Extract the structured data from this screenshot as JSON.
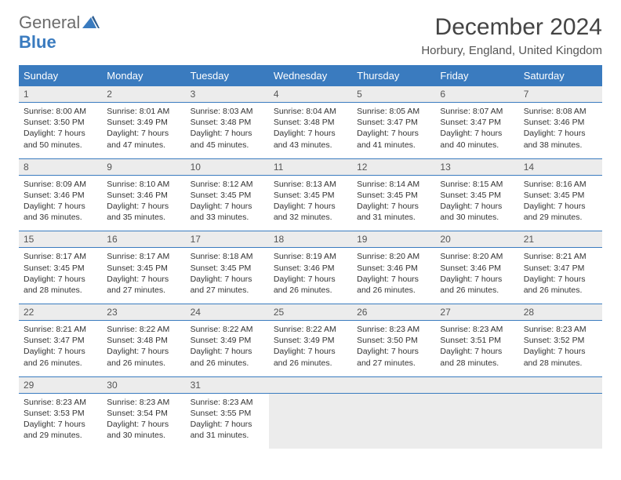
{
  "logo": {
    "word1": "General",
    "word2": "Blue"
  },
  "title": "December 2024",
  "location": "Horbury, England, United Kingdom",
  "colors": {
    "header_bg": "#3a7bbf",
    "header_text": "#ffffff",
    "daynum_bg": "#ececec",
    "border": "#3a7bbf",
    "page_bg": "#ffffff",
    "text": "#333333",
    "logo_gray": "#6c6c6c",
    "logo_blue": "#3a7bbf"
  },
  "weekdays": [
    "Sunday",
    "Monday",
    "Tuesday",
    "Wednesday",
    "Thursday",
    "Friday",
    "Saturday"
  ],
  "weeks": [
    [
      {
        "n": "1",
        "sr": "8:00 AM",
        "ss": "3:50 PM",
        "dl": "7 hours and 50 minutes."
      },
      {
        "n": "2",
        "sr": "8:01 AM",
        "ss": "3:49 PM",
        "dl": "7 hours and 47 minutes."
      },
      {
        "n": "3",
        "sr": "8:03 AM",
        "ss": "3:48 PM",
        "dl": "7 hours and 45 minutes."
      },
      {
        "n": "4",
        "sr": "8:04 AM",
        "ss": "3:48 PM",
        "dl": "7 hours and 43 minutes."
      },
      {
        "n": "5",
        "sr": "8:05 AM",
        "ss": "3:47 PM",
        "dl": "7 hours and 41 minutes."
      },
      {
        "n": "6",
        "sr": "8:07 AM",
        "ss": "3:47 PM",
        "dl": "7 hours and 40 minutes."
      },
      {
        "n": "7",
        "sr": "8:08 AM",
        "ss": "3:46 PM",
        "dl": "7 hours and 38 minutes."
      }
    ],
    [
      {
        "n": "8",
        "sr": "8:09 AM",
        "ss": "3:46 PM",
        "dl": "7 hours and 36 minutes."
      },
      {
        "n": "9",
        "sr": "8:10 AM",
        "ss": "3:46 PM",
        "dl": "7 hours and 35 minutes."
      },
      {
        "n": "10",
        "sr": "8:12 AM",
        "ss": "3:45 PM",
        "dl": "7 hours and 33 minutes."
      },
      {
        "n": "11",
        "sr": "8:13 AM",
        "ss": "3:45 PM",
        "dl": "7 hours and 32 minutes."
      },
      {
        "n": "12",
        "sr": "8:14 AM",
        "ss": "3:45 PM",
        "dl": "7 hours and 31 minutes."
      },
      {
        "n": "13",
        "sr": "8:15 AM",
        "ss": "3:45 PM",
        "dl": "7 hours and 30 minutes."
      },
      {
        "n": "14",
        "sr": "8:16 AM",
        "ss": "3:45 PM",
        "dl": "7 hours and 29 minutes."
      }
    ],
    [
      {
        "n": "15",
        "sr": "8:17 AM",
        "ss": "3:45 PM",
        "dl": "7 hours and 28 minutes."
      },
      {
        "n": "16",
        "sr": "8:17 AM",
        "ss": "3:45 PM",
        "dl": "7 hours and 27 minutes."
      },
      {
        "n": "17",
        "sr": "8:18 AM",
        "ss": "3:45 PM",
        "dl": "7 hours and 27 minutes."
      },
      {
        "n": "18",
        "sr": "8:19 AM",
        "ss": "3:46 PM",
        "dl": "7 hours and 26 minutes."
      },
      {
        "n": "19",
        "sr": "8:20 AM",
        "ss": "3:46 PM",
        "dl": "7 hours and 26 minutes."
      },
      {
        "n": "20",
        "sr": "8:20 AM",
        "ss": "3:46 PM",
        "dl": "7 hours and 26 minutes."
      },
      {
        "n": "21",
        "sr": "8:21 AM",
        "ss": "3:47 PM",
        "dl": "7 hours and 26 minutes."
      }
    ],
    [
      {
        "n": "22",
        "sr": "8:21 AM",
        "ss": "3:47 PM",
        "dl": "7 hours and 26 minutes."
      },
      {
        "n": "23",
        "sr": "8:22 AM",
        "ss": "3:48 PM",
        "dl": "7 hours and 26 minutes."
      },
      {
        "n": "24",
        "sr": "8:22 AM",
        "ss": "3:49 PM",
        "dl": "7 hours and 26 minutes."
      },
      {
        "n": "25",
        "sr": "8:22 AM",
        "ss": "3:49 PM",
        "dl": "7 hours and 26 minutes."
      },
      {
        "n": "26",
        "sr": "8:23 AM",
        "ss": "3:50 PM",
        "dl": "7 hours and 27 minutes."
      },
      {
        "n": "27",
        "sr": "8:23 AM",
        "ss": "3:51 PM",
        "dl": "7 hours and 28 minutes."
      },
      {
        "n": "28",
        "sr": "8:23 AM",
        "ss": "3:52 PM",
        "dl": "7 hours and 28 minutes."
      }
    ],
    [
      {
        "n": "29",
        "sr": "8:23 AM",
        "ss": "3:53 PM",
        "dl": "7 hours and 29 minutes."
      },
      {
        "n": "30",
        "sr": "8:23 AM",
        "ss": "3:54 PM",
        "dl": "7 hours and 30 minutes."
      },
      {
        "n": "31",
        "sr": "8:23 AM",
        "ss": "3:55 PM",
        "dl": "7 hours and 31 minutes."
      },
      null,
      null,
      null,
      null
    ]
  ],
  "labels": {
    "sunrise": "Sunrise: ",
    "sunset": "Sunset: ",
    "daylight": "Daylight: "
  }
}
